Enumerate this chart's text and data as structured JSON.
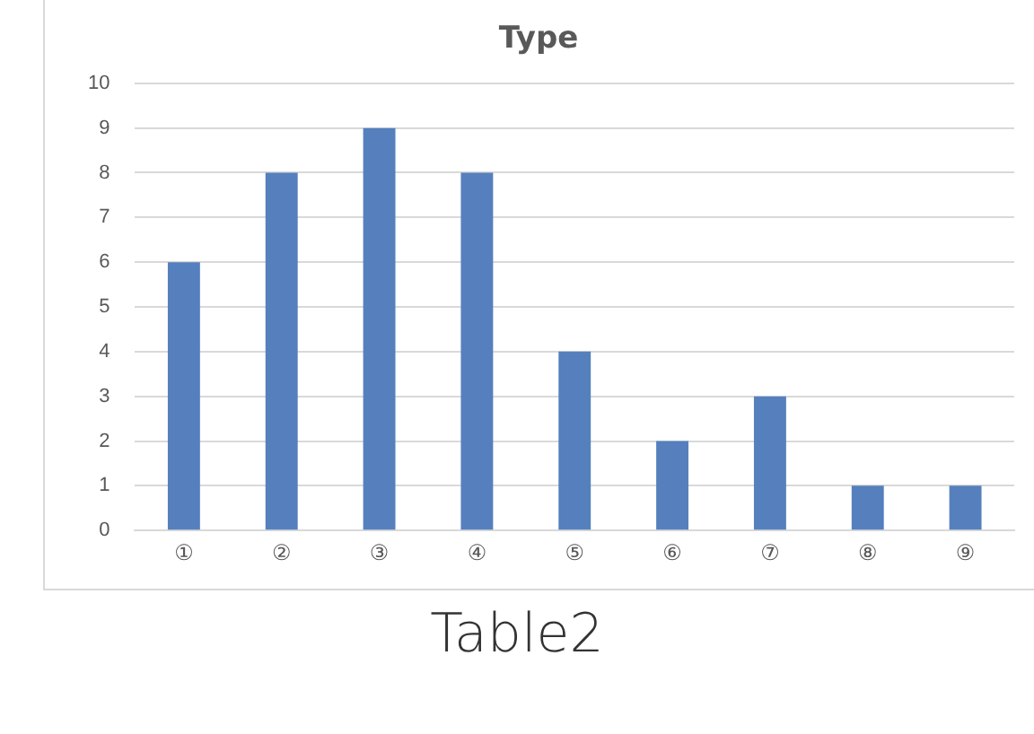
{
  "chart_data": {
    "type": "bar",
    "title": "Type",
    "categories": [
      "①",
      "②",
      "③",
      "④",
      "⑤",
      "⑥",
      "⑦",
      "⑧",
      "⑨"
    ],
    "values": [
      6,
      8,
      9,
      8,
      4,
      2,
      3,
      1,
      1
    ],
    "color": "#5580bd",
    "ylim": [
      0,
      10
    ],
    "yticks": [
      0,
      1,
      2,
      3,
      4,
      5,
      6,
      7,
      8,
      9,
      10
    ],
    "grid": "y",
    "legend": false,
    "annotations": [
      "Table2"
    ]
  }
}
